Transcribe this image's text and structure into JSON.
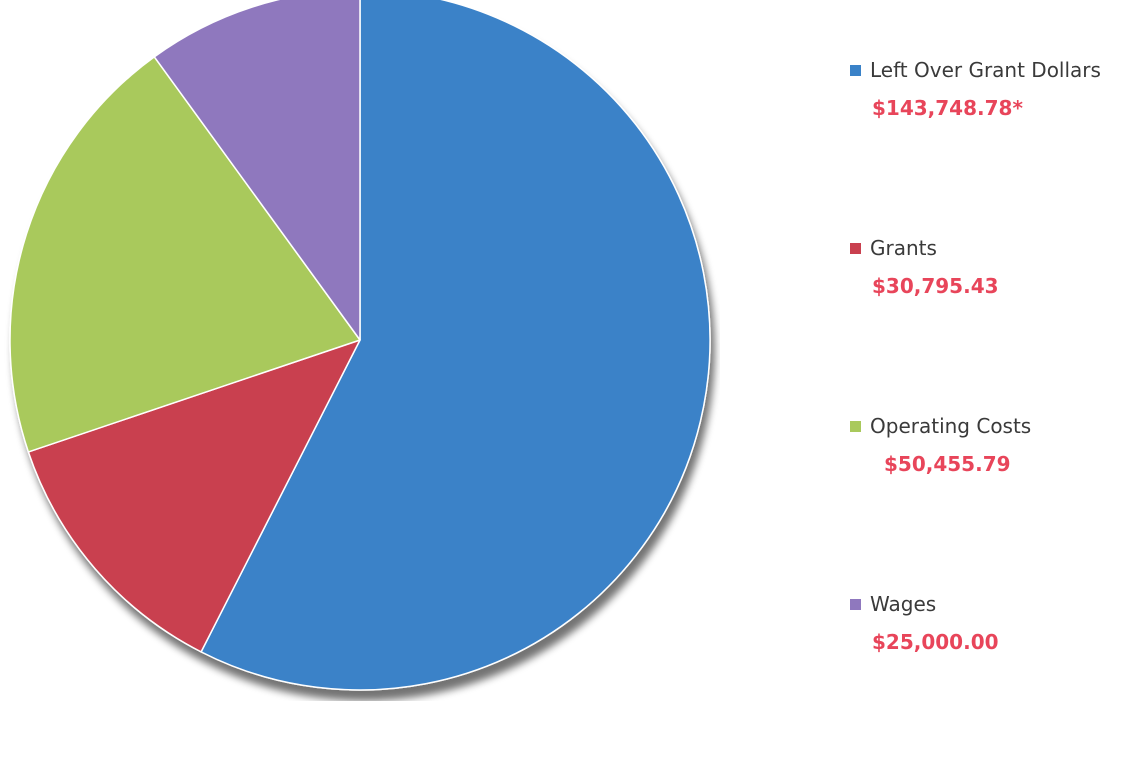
{
  "chart_data": {
    "type": "pie",
    "title": "",
    "categories": [
      "Left Over Grant Dollars",
      "Grants",
      "Operating Costs",
      "Wages"
    ],
    "values": [
      143748.78,
      30795.43,
      50455.79,
      25000.0
    ],
    "value_labels": [
      "$143,748.78*",
      "$30,795.43",
      "$50,455.79",
      "$25,000.00"
    ],
    "colors": [
      "#3a82c8",
      "#c9404f",
      "#a9c95c",
      "#8f78be"
    ],
    "legend_position": "right"
  },
  "legend": {
    "items": [
      {
        "label": "Left Over Grant Dollars",
        "value": "$143,748.78*",
        "color": "#3a82c8"
      },
      {
        "label": "Grants",
        "value": "$30,795.43",
        "color": "#c9404f"
      },
      {
        "label": "Operating Costs",
        "value": "$50,455.79",
        "color": "#a9c95c"
      },
      {
        "label": "Wages",
        "value": "$25,000.00",
        "color": "#8f78be"
      }
    ]
  }
}
